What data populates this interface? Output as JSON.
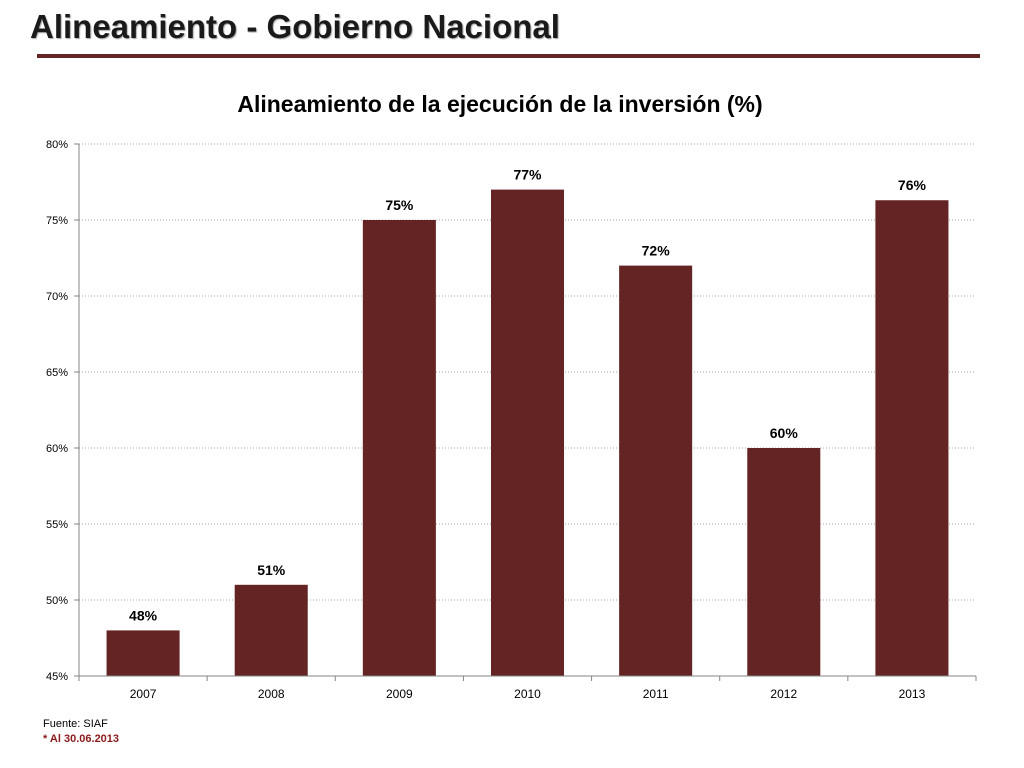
{
  "slide": {
    "title": "Alineamiento - Gobierno Nacional",
    "source": "Fuente: SIAF",
    "date_note": "* Al 30.06.2013"
  },
  "colors": {
    "bar": "#632423",
    "rule": "#632423",
    "grid": "#a6a6a6",
    "axis": "#868686"
  },
  "chart_data": {
    "type": "bar",
    "title": "Alineamiento de la ejecución de la inversión (%)",
    "xlabel": "",
    "ylabel": "",
    "categories": [
      "2007",
      "2008",
      "2009",
      "2010",
      "2011",
      "2012",
      "2013"
    ],
    "values": [
      48,
      51,
      75,
      77,
      72,
      60,
      76.3
    ],
    "data_labels": [
      "48%",
      "51%",
      "75%",
      "77%",
      "72%",
      "60%",
      "76%"
    ],
    "ylim": [
      45,
      80
    ],
    "yticks": [
      45,
      50,
      55,
      60,
      65,
      70,
      75,
      80
    ],
    "ytick_labels": [
      "45%",
      "50%",
      "55%",
      "60%",
      "65%",
      "70%",
      "75%",
      "80%"
    ],
    "grid": true,
    "grid_style": "dotted",
    "legend": "none"
  }
}
